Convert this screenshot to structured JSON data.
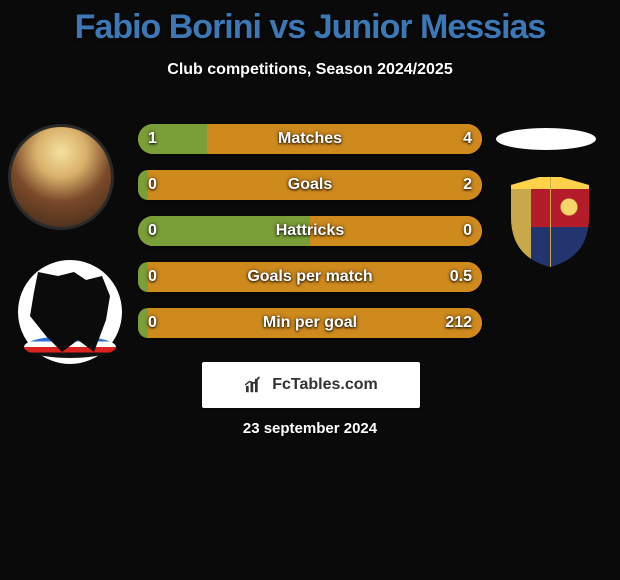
{
  "title": {
    "left": "Fabio Borini",
    "vs": " vs ",
    "right": "Junior Messias",
    "font_size": 34,
    "color_left": "#3b78b5",
    "color_vs": "#3b78b5",
    "color_right": "#3b78b5"
  },
  "subtitle": {
    "text": "Club competitions, Season 2024/2025",
    "font_size": 16,
    "color": "#ffffff"
  },
  "bars": [
    {
      "label": "Matches",
      "left": "1",
      "right": "4",
      "left_pct": 20,
      "right_pct": 80
    },
    {
      "label": "Goals",
      "left": "0",
      "right": "2",
      "left_pct": 3,
      "right_pct": 97
    },
    {
      "label": "Hattricks",
      "left": "0",
      "right": "0",
      "left_pct": 50,
      "right_pct": 50
    },
    {
      "label": "Goals per match",
      "left": "0",
      "right": "0.5",
      "left_pct": 3,
      "right_pct": 97
    },
    {
      "label": "Min per goal",
      "left": "0",
      "right": "212",
      "left_pct": 3,
      "right_pct": 97
    }
  ],
  "bar_style": {
    "color_left": "#7a9e38",
    "color_right": "#cf8a1e",
    "height": 30,
    "gap": 16,
    "label_color": "#ffffff",
    "label_font_size": 16,
    "value_color": "#ffffff",
    "value_font_size": 16
  },
  "attribution": {
    "text": "FcTables.com",
    "font_size": 16,
    "text_color": "#333333",
    "box_bg": "#ffffff"
  },
  "date": {
    "text": "23 september 2024",
    "font_size": 15,
    "color": "#ffffff"
  },
  "background_color": "#0a0a0a"
}
